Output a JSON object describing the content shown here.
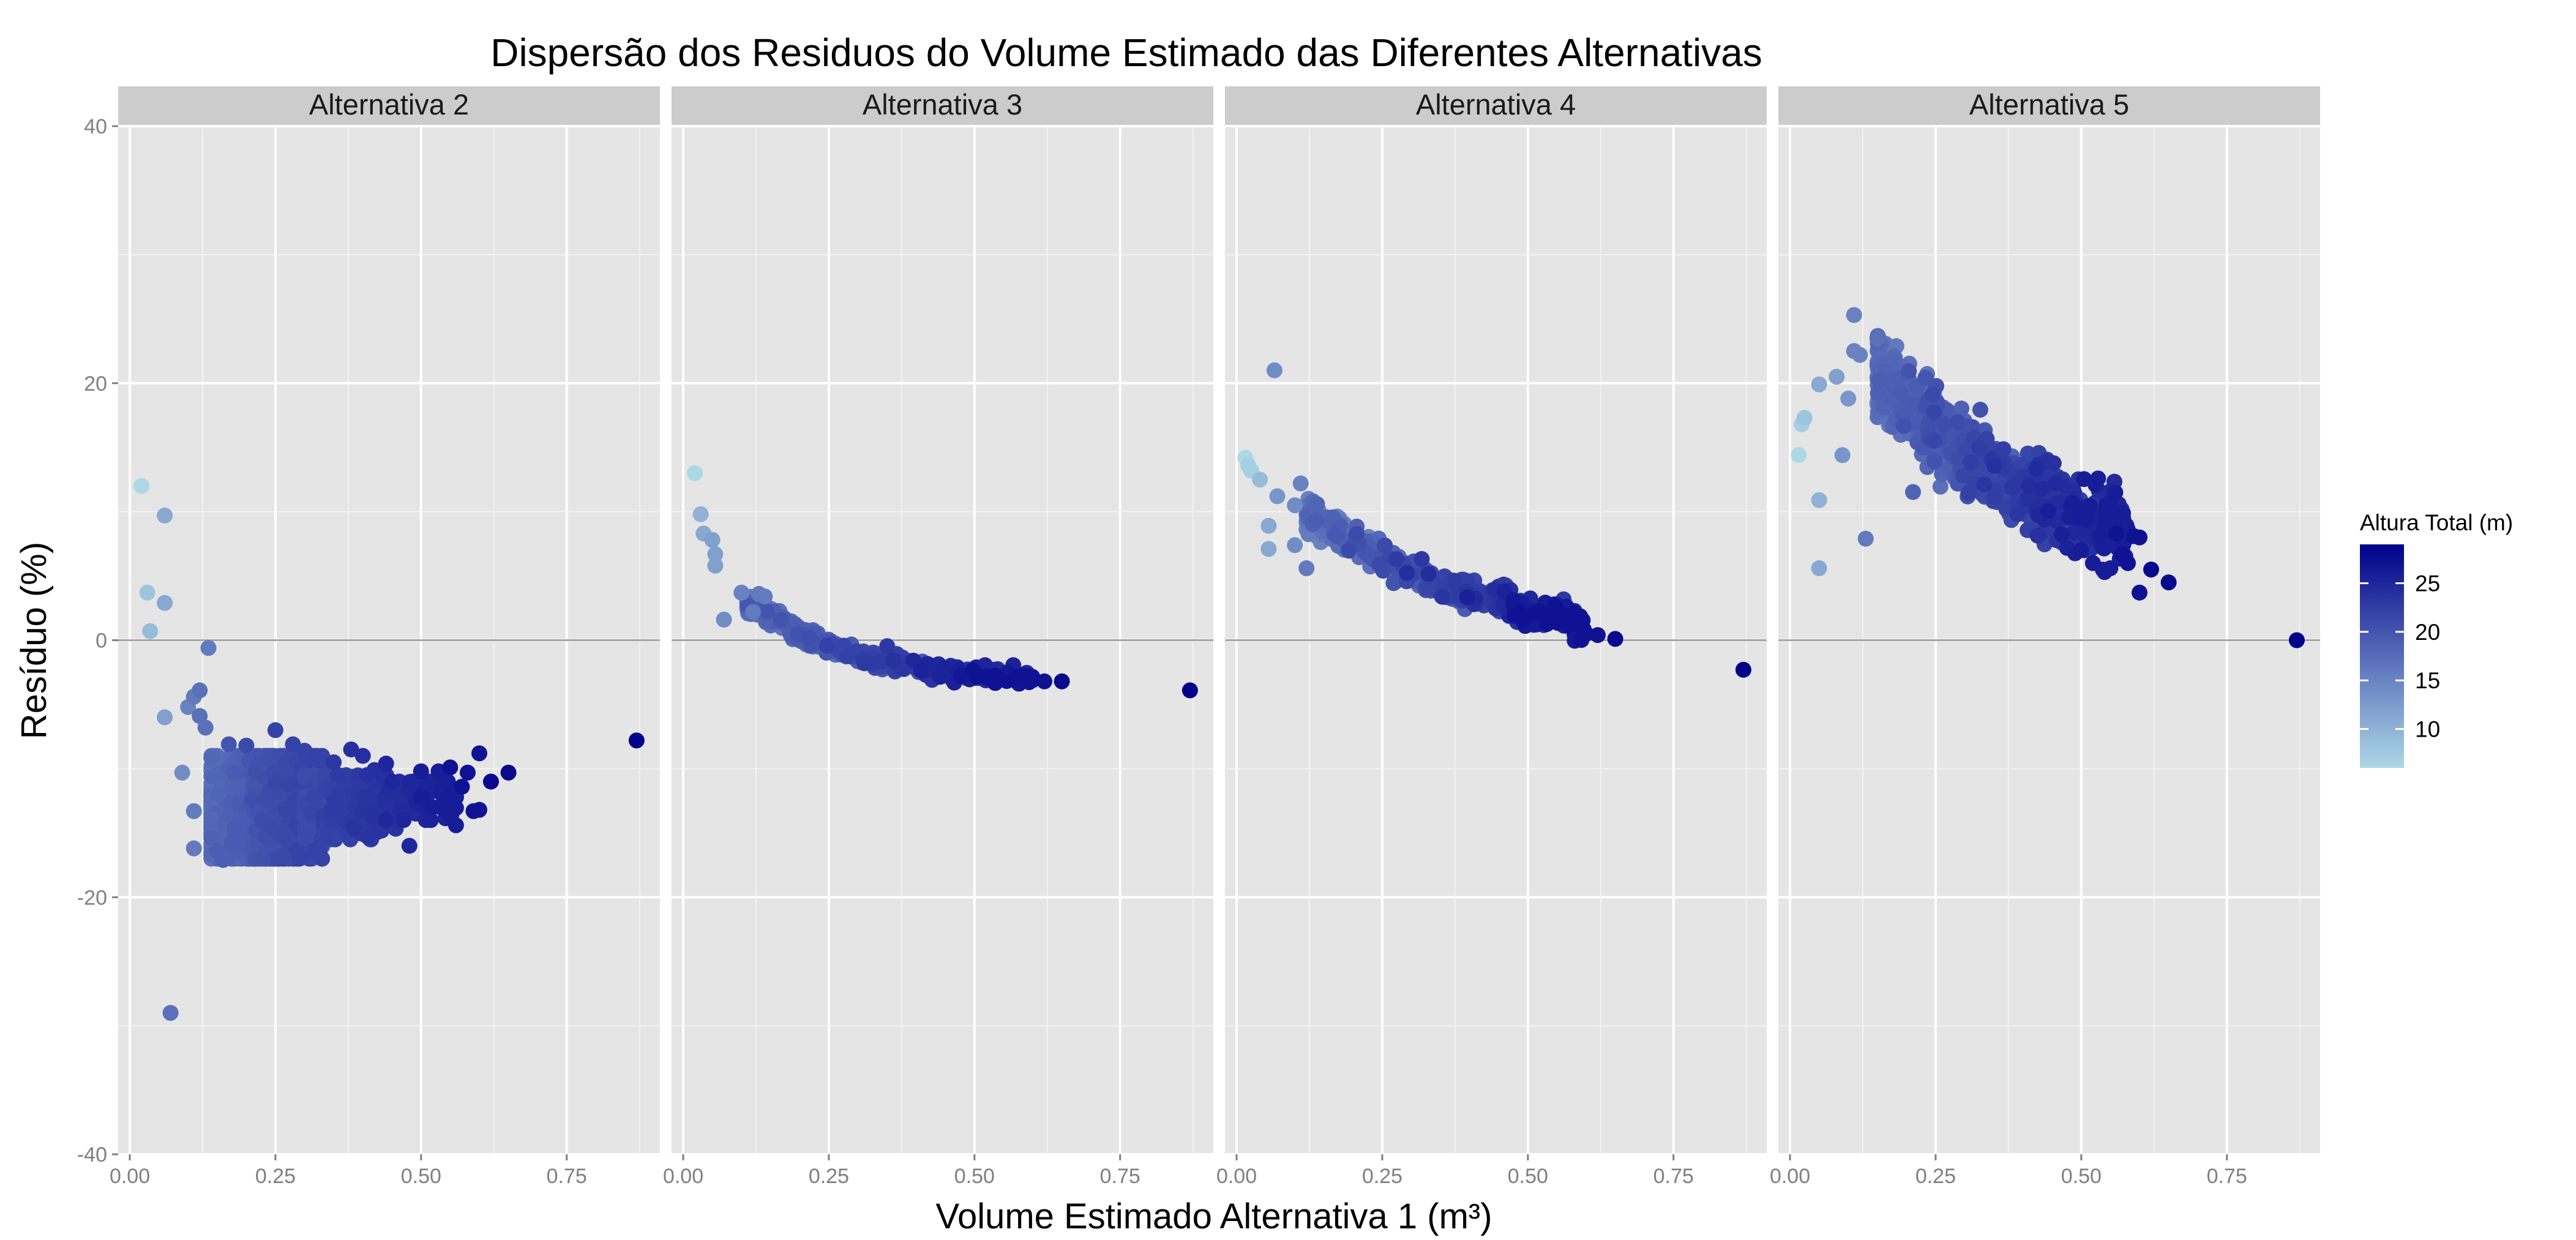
{
  "chart_data": {
    "type": "scatter",
    "title": "Dispersão dos Residuos do Volume Estimado das Diferentes Alternativas",
    "xlabel": "Volume Estimado Alternativa 1 (m³)",
    "ylabel": "Resíduo (%)",
    "xlim": [
      -0.02,
      0.91
    ],
    "ylim": [
      -40,
      40
    ],
    "x_ticks": [
      0,
      0.25,
      0.5,
      0.75
    ],
    "x_tick_labels": [
      "0.00",
      "0.25",
      "0.50",
      "0.75"
    ],
    "y_ticks": [
      -40,
      -20,
      0,
      20,
      40
    ],
    "y_tick_labels": [
      "-40",
      "-20",
      "0",
      "20",
      "40"
    ],
    "grid": true,
    "reference_line_y": 0,
    "colors": {
      "panel_bg": "#E5E5E5",
      "strip_bg": "#CCCCCC",
      "grid_major": "#FFFFFF",
      "grid_minor": "#F2F2F2",
      "zero_line": "#A6A6A6",
      "tick_text": "#7F7F7F",
      "low": "#ADD8E6",
      "high": "#00008B"
    },
    "legend": {
      "title": "Altura Total (m)",
      "position": "right",
      "min": 6,
      "max": 29,
      "ticks": [
        10,
        15,
        20,
        25
      ],
      "tick_labels": [
        "10",
        "15",
        "20",
        "25"
      ]
    },
    "panels": [
      {
        "label": "Alternativa 2",
        "points": [
          [
            0.02,
            12.0,
            6
          ],
          [
            0.03,
            3.7,
            8
          ],
          [
            0.035,
            0.7,
            9
          ],
          [
            0.06,
            9.7,
            11
          ],
          [
            0.06,
            2.9,
            11
          ],
          [
            0.06,
            -6.0,
            12
          ],
          [
            0.07,
            -29.0,
            17
          ],
          [
            0.09,
            -10.3,
            14
          ],
          [
            0.1,
            -5.2,
            15
          ],
          [
            0.11,
            -13.3,
            16
          ],
          [
            0.11,
            -16.2,
            16
          ],
          [
            0.11,
            -4.4,
            16
          ],
          [
            0.12,
            -3.9,
            17
          ],
          [
            0.12,
            -5.9,
            17
          ],
          [
            0.13,
            -6.8,
            17
          ],
          [
            0.135,
            -0.6,
            16
          ],
          [
            0.14,
            -13.9,
            18
          ],
          [
            0.15,
            -16.4,
            19
          ],
          [
            0.16,
            -17.1,
            19
          ],
          [
            0.17,
            -8.1,
            20
          ],
          [
            0.2,
            -8.2,
            21
          ],
          [
            0.25,
            -7.0,
            22
          ],
          [
            0.28,
            -8.1,
            22
          ],
          [
            0.3,
            -8.6,
            22
          ],
          [
            0.35,
            -9.5,
            23
          ],
          [
            0.38,
            -8.5,
            24
          ],
          [
            0.4,
            -9.0,
            24
          ],
          [
            0.42,
            -10.1,
            24
          ],
          [
            0.44,
            -9.6,
            25
          ],
          [
            0.45,
            -11.0,
            25
          ],
          [
            0.47,
            -14.0,
            25
          ],
          [
            0.48,
            -16.0,
            25
          ],
          [
            0.5,
            -10.2,
            26
          ],
          [
            0.5,
            -12.2,
            26
          ],
          [
            0.52,
            -13.0,
            26
          ],
          [
            0.53,
            -10.2,
            26
          ],
          [
            0.54,
            -12.5,
            26
          ],
          [
            0.55,
            -9.9,
            27
          ],
          [
            0.56,
            -14.4,
            26
          ],
          [
            0.57,
            -11.4,
            27
          ],
          [
            0.58,
            -10.3,
            27
          ],
          [
            0.59,
            -13.3,
            27
          ],
          [
            0.6,
            -8.8,
            27
          ],
          [
            0.6,
            -13.2,
            27
          ],
          [
            0.62,
            -11.0,
            28
          ],
          [
            0.65,
            -10.3,
            28
          ],
          [
            0.87,
            -7.8,
            29
          ]
        ],
        "clusters": [
          {
            "x_range": [
              0.14,
              0.33
            ],
            "y_range": [
              -17.0,
              -9.0
            ],
            "color_range": [
              17,
              22
            ],
            "count": 1100
          },
          {
            "x_range": [
              0.3,
              0.46
            ],
            "y_range": [
              -15.5,
              -10.5
            ],
            "color_range": [
              21,
              24
            ],
            "count": 250
          },
          {
            "x_range": [
              0.44,
              0.56
            ],
            "y_range": [
              -14.0,
              -11.0
            ],
            "color_range": [
              24,
              26
            ],
            "count": 60
          }
        ]
      },
      {
        "label": "Alternativa 3",
        "points": [
          [
            0.02,
            13.0,
            6
          ],
          [
            0.03,
            9.8,
            10
          ],
          [
            0.035,
            8.3,
            11
          ],
          [
            0.05,
            7.8,
            12
          ],
          [
            0.055,
            6.7,
            12
          ],
          [
            0.055,
            5.8,
            12
          ],
          [
            0.07,
            1.6,
            14
          ],
          [
            0.1,
            3.7,
            15
          ],
          [
            0.12,
            2.2,
            16
          ],
          [
            0.13,
            3.6,
            16
          ],
          [
            0.14,
            3.4,
            16
          ],
          [
            0.6,
            -3.1,
            27
          ],
          [
            0.62,
            -3.2,
            27
          ],
          [
            0.65,
            -3.2,
            28
          ],
          [
            0.87,
            -3.9,
            29
          ]
        ],
        "clusters": [
          {
            "curve": [
              [
                0.1,
                3.0
              ],
              [
                0.15,
                2.0
              ],
              [
                0.2,
                0.5
              ],
              [
                0.25,
                -0.5
              ],
              [
                0.3,
                -1.2
              ],
              [
                0.4,
                -2.0
              ],
              [
                0.5,
                -2.6
              ],
              [
                0.6,
                -3.1
              ]
            ],
            "spread": 0.6,
            "x_range": [
              0.11,
              0.6
            ],
            "color_range": [
              16,
              27
            ],
            "count": 450
          }
        ]
      },
      {
        "label": "Alternativa 4",
        "points": [
          [
            0.015,
            14.2,
            6
          ],
          [
            0.02,
            13.6,
            7
          ],
          [
            0.025,
            13.2,
            7
          ],
          [
            0.04,
            12.5,
            9
          ],
          [
            0.055,
            8.9,
            11
          ],
          [
            0.055,
            7.1,
            11
          ],
          [
            0.065,
            21.0,
            14
          ],
          [
            0.07,
            11.2,
            13
          ],
          [
            0.1,
            10.5,
            14
          ],
          [
            0.1,
            7.4,
            14
          ],
          [
            0.11,
            12.2,
            15
          ],
          [
            0.12,
            5.6,
            16
          ],
          [
            0.6,
            0.5,
            27
          ],
          [
            0.62,
            0.4,
            27
          ],
          [
            0.65,
            0.1,
            28
          ],
          [
            0.87,
            -2.3,
            29
          ]
        ],
        "clusters": [
          {
            "curve": [
              [
                0.12,
                10.0
              ],
              [
                0.15,
                9.2
              ],
              [
                0.2,
                7.6
              ],
              [
                0.25,
                6.4
              ],
              [
                0.3,
                5.3
              ],
              [
                0.35,
                4.3
              ],
              [
                0.4,
                3.5
              ],
              [
                0.5,
                2.3
              ],
              [
                0.6,
                1.3
              ]
            ],
            "spread": 1.1,
            "x_range": [
              0.12,
              0.6
            ],
            "color_range": [
              15,
              27
            ],
            "count": 550
          }
        ]
      },
      {
        "label": "Alternativa 5",
        "points": [
          [
            0.015,
            14.4,
            6
          ],
          [
            0.02,
            16.8,
            7
          ],
          [
            0.025,
            17.3,
            8
          ],
          [
            0.05,
            10.9,
            10
          ],
          [
            0.05,
            5.6,
            11
          ],
          [
            0.05,
            19.9,
            11
          ],
          [
            0.08,
            20.5,
            12
          ],
          [
            0.09,
            14.4,
            13
          ],
          [
            0.1,
            18.8,
            13
          ],
          [
            0.11,
            22.5,
            15
          ],
          [
            0.11,
            25.3,
            15
          ],
          [
            0.12,
            22.2,
            15
          ],
          [
            0.13,
            7.9,
            16
          ],
          [
            0.15,
            23.5,
            17
          ],
          [
            0.5,
            7.0,
            26
          ],
          [
            0.52,
            6.0,
            26
          ],
          [
            0.54,
            5.3,
            26
          ],
          [
            0.55,
            5.6,
            26
          ],
          [
            0.56,
            8.3,
            27
          ],
          [
            0.57,
            6.7,
            27
          ],
          [
            0.58,
            6.0,
            27
          ],
          [
            0.59,
            8.1,
            27
          ],
          [
            0.6,
            3.7,
            27
          ],
          [
            0.6,
            8.0,
            27
          ],
          [
            0.62,
            5.5,
            28
          ],
          [
            0.65,
            4.5,
            28
          ],
          [
            0.87,
            0.0,
            29
          ]
        ],
        "clusters": [
          {
            "curve": [
              [
                0.15,
                20.5
              ],
              [
                0.2,
                18.5
              ],
              [
                0.25,
                16.3
              ],
              [
                0.3,
                14.5
              ],
              [
                0.35,
                13.0
              ],
              [
                0.4,
                11.7
              ],
              [
                0.45,
                10.5
              ],
              [
                0.52,
                9.3
              ],
              [
                0.58,
                8.5
              ]
            ],
            "spread": 2.7,
            "x_range": [
              0.15,
              0.58
            ],
            "color_range": [
              16,
              26
            ],
            "count": 1000
          }
        ]
      }
    ]
  }
}
